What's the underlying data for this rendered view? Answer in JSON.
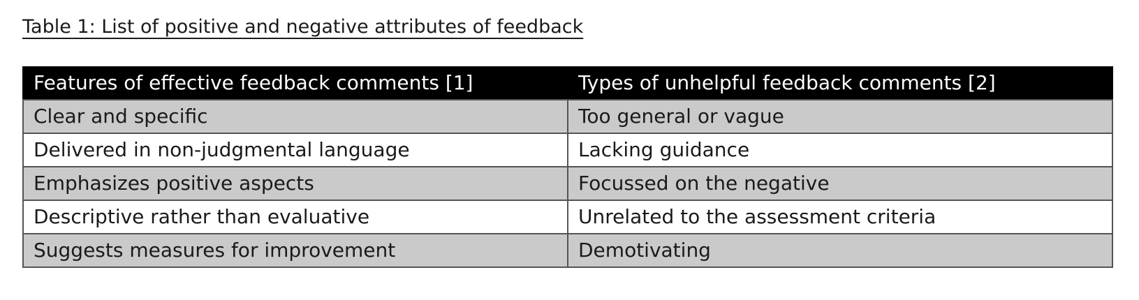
{
  "title": "Table 1: List of positive and negative attributes of feedback",
  "table": {
    "columns": [
      {
        "header": "Features of effective feedback comments [1]"
      },
      {
        "header": "Types of unhelpful feedback comments [2]"
      }
    ],
    "rows": [
      [
        "Clear and specific",
        "Too general or vague"
      ],
      [
        "Delivered in non-judgmental language",
        "Lacking guidance"
      ],
      [
        "Emphasizes positive aspects",
        "Focussed on the negative"
      ],
      [
        "Descriptive rather than evaluative",
        "Unrelated to the assessment criteria"
      ],
      [
        "Suggests measures for improvement",
        "Demotivating"
      ]
    ],
    "colors": {
      "header_bg": "#000000",
      "header_text": "#ffffff",
      "row_bg": "#ffffff",
      "row_alt_bg": "#cacaca",
      "border": "#545454",
      "text": "#1a1a1a",
      "page_bg": "#ffffff"
    }
  }
}
